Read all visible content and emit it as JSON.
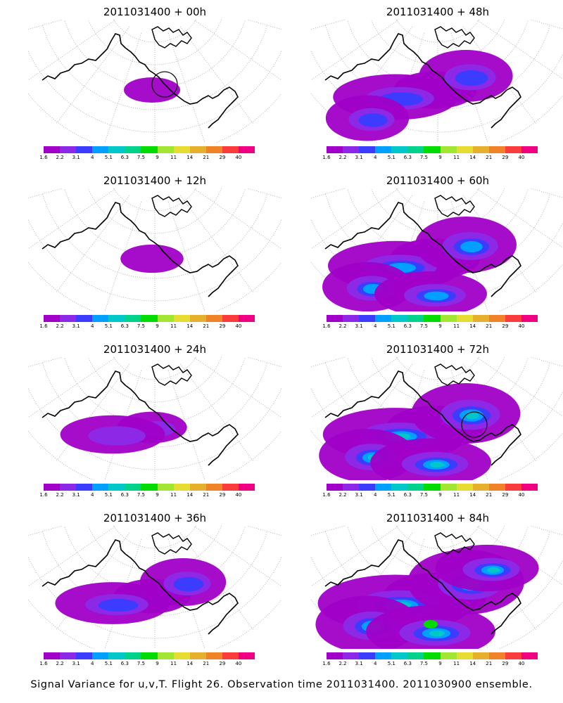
{
  "panels": [
    {
      "title": "2011031400 + 00h",
      "intensity": 0,
      "circle": true,
      "circle_color": "#111111"
    },
    {
      "title": "2011031400 + 48h",
      "intensity": 4,
      "circle": false
    },
    {
      "title": "2011031400 + 12h",
      "intensity": 1,
      "circle": false
    },
    {
      "title": "2011031400 + 60h",
      "intensity": 5,
      "circle": false
    },
    {
      "title": "2011031400 + 24h",
      "intensity": 2,
      "circle": false
    },
    {
      "title": "2011031400 + 72h",
      "intensity": 6,
      "circle": true,
      "circle_color": "#111111"
    },
    {
      "title": "2011031400 + 36h",
      "intensity": 3,
      "circle": false
    },
    {
      "title": "2011031400 + 84h",
      "intensity": 7,
      "circle": false
    }
  ],
  "colorbar": {
    "colors": [
      "#a000c8",
      "#8c28e6",
      "#3c3cff",
      "#00a0ff",
      "#00c8c8",
      "#00d28c",
      "#00dc00",
      "#a0e632",
      "#e6dc32",
      "#e6af2d",
      "#f08228",
      "#fa3c3c",
      "#f00082"
    ],
    "labels": [
      "1.6",
      "2.2",
      "3.1",
      "4",
      "5.1",
      "6.3",
      "7.5",
      "9",
      "11",
      "14",
      "21",
      "29",
      "40"
    ]
  },
  "footer": "Signal Variance for u,v,T. Flight 26. Observation time 2011031400. 2011030900 ensemble."
}
